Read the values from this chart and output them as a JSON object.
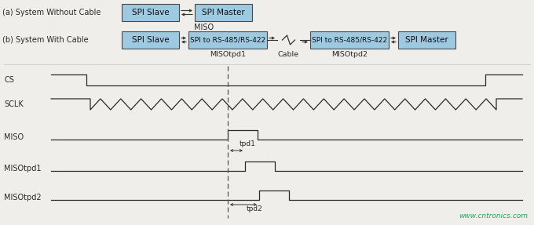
{
  "bg_color": "#f0eeea",
  "watermark": "www.cntronics.com",
  "watermark_color": "#22aa55",
  "diagram_a_label": "(a) System Without Cable",
  "diagram_b_label": "(b) System With Cable",
  "box_color": "#9ecae1",
  "box_edge_color": "#4a4a4a",
  "signal_color": "#2a2a2a",
  "label_color": "#2a2a2a",
  "dashed_color": "#555555",
  "tpd1_label": "tpd1",
  "tpd2_label": "tpd2",
  "miso_label": "MISO",
  "misotpd1_label": "MISOtpd1",
  "misotpd2_label": "MISOtpd2",
  "cable_label": "Cable"
}
